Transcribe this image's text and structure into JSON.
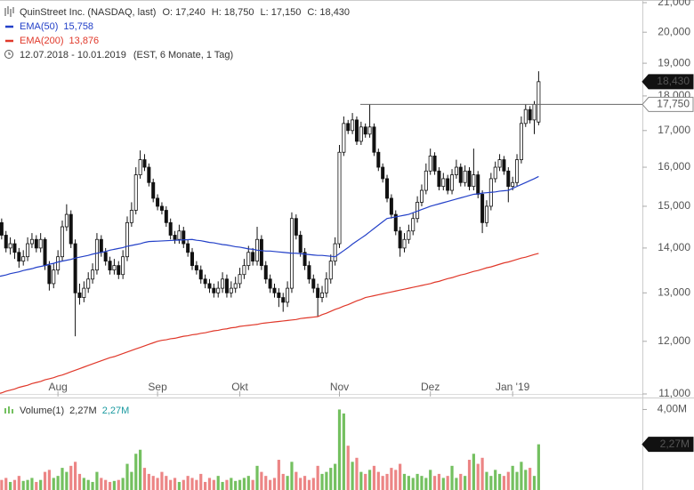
{
  "chart_data": [
    {
      "type": "candlestick",
      "title": "QuinStreet Inc. (NASDAQ, last)",
      "quote": [
        "O: 17,240",
        "H: 18,750",
        "L: 17,150",
        "C: 18,430"
      ],
      "subtitle": "12.07.2018 - 10.01.2019",
      "note": "(EST, 6 Monate, 1 Tag)",
      "categories": [
        null,
        null,
        null,
        null,
        null,
        null,
        null,
        null,
        null,
        null,
        null,
        null,
        null,
        null,
        "Aug",
        null,
        null,
        null,
        null,
        null,
        null,
        null,
        null,
        null,
        null,
        null,
        null,
        null,
        null,
        null,
        null,
        null,
        null,
        null,
        null,
        null,
        null,
        "Sep",
        null,
        null,
        null,
        null,
        null,
        null,
        null,
        null,
        null,
        null,
        null,
        null,
        null,
        null,
        null,
        null,
        null,
        null,
        "Okt",
        null,
        null,
        null,
        null,
        null,
        null,
        null,
        null,
        null,
        null,
        null,
        null,
        null,
        null,
        null,
        null,
        null,
        null,
        null,
        null,
        null,
        null,
        "Nov",
        null,
        null,
        null,
        null,
        null,
        null,
        null,
        null,
        null,
        null,
        null,
        null,
        null,
        null,
        null,
        null,
        null,
        null,
        null,
        null,
        "Dez",
        null,
        null,
        null,
        null,
        null,
        null,
        null,
        null,
        null,
        null,
        null,
        null,
        null,
        null,
        null,
        null,
        null,
        null,
        "Jan '19",
        null,
        null,
        null,
        null,
        null,
        null
      ],
      "open": [
        14400,
        14600,
        14300,
        14000,
        14100,
        13900,
        13700,
        13800,
        14100,
        14200,
        14000,
        14200,
        13600,
        13200,
        13500,
        13800,
        14500,
        14800,
        14100,
        13000,
        12900,
        13100,
        13300,
        13500,
        14200,
        13900,
        13700,
        13500,
        13600,
        13400,
        13800,
        14600,
        14900,
        15800,
        16200,
        16000,
        15600,
        15200,
        15000,
        14900,
        14600,
        14300,
        14200,
        14400,
        14100,
        13900,
        13600,
        13500,
        13300,
        13200,
        13100,
        13000,
        13100,
        13300,
        13000,
        13100,
        13200,
        13400,
        13600,
        13900,
        13700,
        14200,
        13600,
        13300,
        13100,
        13000,
        12900,
        12800,
        13100,
        14700,
        14300,
        13900,
        13600,
        13300,
        13100,
        12900,
        13000,
        13300,
        13700,
        14100,
        16400,
        17200,
        17000,
        17300,
        16700,
        17100,
        16900,
        17100,
        16400,
        16000,
        15700,
        15200,
        14800,
        14400,
        14000,
        14200,
        14400,
        14700,
        15100,
        15400,
        15900,
        16300,
        15900,
        15500,
        15700,
        15400,
        15800,
        16000,
        15600,
        15900,
        15500,
        15800,
        15300,
        14600,
        15000,
        15700,
        16000,
        16200,
        15900,
        15500,
        15600,
        16200,
        17200,
        17600,
        17300,
        17240
      ],
      "high": [
        14800,
        14700,
        14400,
        14250,
        14200,
        14000,
        13950,
        14250,
        14350,
        14300,
        14350,
        14250,
        13700,
        13650,
        13950,
        14650,
        15050,
        14900,
        14200,
        13200,
        13250,
        13450,
        13650,
        14350,
        14300,
        14000,
        13800,
        13750,
        13700,
        13950,
        14750,
        15100,
        16000,
        16450,
        16350,
        16100,
        15700,
        15300,
        15100,
        15000,
        14700,
        14400,
        14550,
        14500,
        14200,
        14000,
        13700,
        13600,
        13400,
        13300,
        13200,
        13250,
        13450,
        13400,
        13250,
        13350,
        13550,
        13750,
        14050,
        14000,
        14500,
        14300,
        13700,
        13400,
        13200,
        13100,
        13000,
        13250,
        14850,
        14800,
        14400,
        14000,
        13700,
        13400,
        13200,
        13150,
        13450,
        13850,
        14250,
        16600,
        17400,
        17300,
        17500,
        17400,
        17250,
        17200,
        17750,
        17200,
        16500,
        16100,
        15800,
        15300,
        14900,
        14500,
        14350,
        14550,
        14850,
        15250,
        15550,
        16100,
        16500,
        16400,
        16000,
        15850,
        15800,
        15950,
        16200,
        16100,
        16050,
        16000,
        16500,
        15900,
        15400,
        15150,
        15850,
        16150,
        16350,
        16300,
        16000,
        15750,
        16350,
        17400,
        17750,
        17700,
        17850,
        18750
      ],
      "low": [
        14300,
        14200,
        13900,
        13850,
        13750,
        13550,
        13600,
        13700,
        14000,
        13900,
        13900,
        13500,
        13050,
        13100,
        13400,
        13700,
        14400,
        14000,
        12100,
        12750,
        12800,
        13000,
        13200,
        13400,
        13800,
        13600,
        13400,
        13400,
        13300,
        13300,
        13700,
        14500,
        14800,
        15700,
        15900,
        15500,
        15100,
        14900,
        14800,
        14500,
        14200,
        14100,
        14100,
        14000,
        13800,
        13500,
        13400,
        13200,
        13100,
        13000,
        12900,
        12900,
        13000,
        12900,
        12900,
        13000,
        13100,
        13300,
        13500,
        13600,
        13600,
        13500,
        13200,
        13000,
        12900,
        12700,
        12600,
        12700,
        13000,
        14200,
        13800,
        13500,
        13200,
        13000,
        12500,
        12800,
        12900,
        13200,
        13600,
        14000,
        16300,
        16900,
        16900,
        16600,
        16600,
        16800,
        16800,
        16300,
        15900,
        15600,
        15100,
        14700,
        14300,
        13800,
        13900,
        14100,
        14300,
        14600,
        15000,
        15300,
        15800,
        15800,
        15400,
        15400,
        15300,
        15300,
        15700,
        15500,
        15500,
        15400,
        15400,
        15200,
        14350,
        14500,
        14900,
        15600,
        15900,
        15800,
        15100,
        15400,
        15500,
        16100,
        17100,
        17200,
        16900,
        17150
      ],
      "close": [
        14600,
        14300,
        14000,
        14100,
        13900,
        13700,
        13800,
        14100,
        14200,
        14000,
        14200,
        13600,
        13200,
        13500,
        13800,
        14500,
        14800,
        14100,
        13000,
        12900,
        13100,
        13300,
        13500,
        14200,
        13900,
        13700,
        13500,
        13600,
        13400,
        13800,
        14600,
        14900,
        15800,
        16200,
        16000,
        15600,
        15200,
        15000,
        14900,
        14600,
        14300,
        14200,
        14400,
        14100,
        13900,
        13600,
        13500,
        13300,
        13200,
        13100,
        13000,
        13100,
        13300,
        13000,
        13100,
        13200,
        13400,
        13600,
        13900,
        13700,
        14200,
        13600,
        13300,
        13100,
        13000,
        12900,
        12800,
        13100,
        14700,
        14300,
        13900,
        13600,
        13300,
        13100,
        12900,
        13000,
        13300,
        13700,
        14100,
        16400,
        17200,
        17000,
        17300,
        16700,
        17100,
        16900,
        17100,
        16400,
        16000,
        15700,
        15200,
        14800,
        14400,
        14000,
        14200,
        14400,
        14700,
        15100,
        15400,
        15900,
        16300,
        15900,
        15500,
        15700,
        15400,
        15800,
        16000,
        15600,
        15900,
        15500,
        15800,
        15300,
        14600,
        15000,
        15700,
        16000,
        16200,
        15900,
        15500,
        15600,
        16200,
        17200,
        17600,
        17300,
        17750,
        18430
      ],
      "up_color": "#ffffff",
      "down_color": "#111111",
      "series": [
        {
          "name": "EMA(50)",
          "color": "#2340c8",
          "last_label": "15,758",
          "values": [
            13350,
            13370,
            13390,
            13420,
            13440,
            13460,
            13490,
            13510,
            13530,
            13560,
            13580,
            13600,
            13630,
            13650,
            13680,
            13700,
            13720,
            13740,
            13770,
            13790,
            13810,
            13830,
            13860,
            13880,
            13900,
            13920,
            13950,
            13970,
            13990,
            14010,
            14040,
            14060,
            14080,
            14100,
            14130,
            14150,
            14155,
            14160,
            14165,
            14170,
            14175,
            14180,
            14185,
            14190,
            14195,
            14200,
            14180,
            14170,
            14150,
            14130,
            14120,
            14100,
            14080,
            14070,
            14050,
            14030,
            14020,
            14000,
            13980,
            13970,
            13950,
            13940,
            13930,
            13930,
            13920,
            13910,
            13900,
            13890,
            13880,
            13880,
            13870,
            13860,
            13850,
            13840,
            13830,
            13830,
            13820,
            13810,
            13800,
            13870,
            13940,
            14010,
            14090,
            14160,
            14230,
            14300,
            14380,
            14460,
            14540,
            14620,
            14700,
            14720,
            14740,
            14760,
            14780,
            14800,
            14840,
            14880,
            14920,
            14960,
            15000,
            15030,
            15060,
            15090,
            15120,
            15150,
            15180,
            15210,
            15240,
            15270,
            15300,
            15310,
            15330,
            15340,
            15350,
            15360,
            15380,
            15390,
            15400,
            15450,
            15500,
            15550,
            15600,
            15650,
            15700,
            15758
          ]
        },
        {
          "name": "EMA(200)",
          "color": "#e0382a",
          "last_label": "13,876",
          "values": [
            11000,
            11020,
            11050,
            11070,
            11090,
            11120,
            11140,
            11160,
            11190,
            11210,
            11230,
            11260,
            11280,
            11300,
            11330,
            11350,
            11380,
            11410,
            11440,
            11470,
            11500,
            11530,
            11560,
            11590,
            11620,
            11650,
            11680,
            11700,
            11730,
            11760,
            11790,
            11820,
            11850,
            11880,
            11910,
            11940,
            11970,
            12000,
            12020,
            12030,
            12050,
            12060,
            12080,
            12100,
            12110,
            12130,
            12140,
            12160,
            12170,
            12190,
            12210,
            12220,
            12240,
            12250,
            12270,
            12280,
            12300,
            12310,
            12320,
            12330,
            12340,
            12360,
            12370,
            12380,
            12390,
            12400,
            12410,
            12420,
            12430,
            12440,
            12460,
            12470,
            12480,
            12490,
            12500,
            12540,
            12570,
            12610,
            12650,
            12680,
            12720,
            12750,
            12790,
            12830,
            12860,
            12900,
            12920,
            12940,
            12960,
            12980,
            13000,
            13020,
            13040,
            13060,
            13080,
            13100,
            13120,
            13140,
            13160,
            13180,
            13200,
            13230,
            13250,
            13280,
            13310,
            13330,
            13360,
            13390,
            13410,
            13440,
            13470,
            13490,
            13520,
            13550,
            13570,
            13600,
            13630,
            13660,
            13680,
            13710,
            13740,
            13770,
            13790,
            13820,
            13850,
            13876
          ]
        }
      ],
      "log_scale": true,
      "ylim": [
        11000,
        21000
      ],
      "yticks": [
        {
          "value": 11000,
          "label": "11,000"
        },
        {
          "value": 12000,
          "label": "12,000"
        },
        {
          "value": 13000,
          "label": "13,000"
        },
        {
          "value": 14000,
          "label": "14,000"
        },
        {
          "value": 15000,
          "label": "15,000"
        },
        {
          "value": 16000,
          "label": "16,000"
        },
        {
          "value": 17000,
          "label": "17,000"
        },
        {
          "value": 18000,
          "label": "18,000"
        },
        {
          "value": 19000,
          "label": "19,000"
        },
        {
          "value": 20000,
          "label": "20,000"
        },
        {
          "value": 21000,
          "label": "21,000"
        }
      ],
      "markers": [
        {
          "value": 18430,
          "label": "18,430",
          "color": "#111111"
        },
        {
          "value": 17750,
          "label": "17,750",
          "color": "#ffffff",
          "line": true
        }
      ]
    },
    {
      "type": "bar",
      "series": [
        {
          "name": "Volume(1)",
          "values": [
            700000,
            500000,
            600000,
            400000,
            500000,
            700000,
            450000,
            500000,
            600000,
            400000,
            500000,
            900000,
            1000000,
            600000,
            700000,
            1100000,
            900000,
            1200000,
            1400000,
            800000,
            600000,
            500000,
            400000,
            900000,
            600000,
            500000,
            400000,
            450000,
            500000,
            600000,
            1300000,
            900000,
            1800000,
            2000000,
            1100000,
            800000,
            700000,
            600000,
            900000,
            700000,
            500000,
            600000,
            400000,
            500000,
            700000,
            600000,
            500000,
            800000,
            400000,
            600000,
            500000,
            700000,
            400000,
            500000,
            600000,
            450000,
            500000,
            600000,
            700000,
            500000,
            1200000,
            900000,
            700000,
            500000,
            600000,
            1500000,
            800000,
            700000,
            1400000,
            900000,
            600000,
            700000,
            500000,
            600000,
            1200000,
            800000,
            900000,
            1100000,
            1300000,
            4000000,
            3800000,
            2200000,
            1400000,
            1600000,
            900000,
            800000,
            1000000,
            1200000,
            900000,
            700000,
            800000,
            1100000,
            1000000,
            1300000,
            800000,
            700000,
            600000,
            800000,
            700000,
            600000,
            1000000,
            700000,
            800000,
            600000,
            700000,
            1200000,
            600000,
            800000,
            700000,
            1500000,
            1800000,
            1300000,
            1600000,
            900000,
            700000,
            1000000,
            800000,
            700000,
            900000,
            1200000,
            900000,
            1400000,
            1000000,
            1100000,
            700000,
            2270000
          ]
        }
      ],
      "legend_values": [
        "2,27M",
        "2,27M"
      ],
      "up_color": "#74c060",
      "down_color": "#ec8585",
      "ylim": [
        0,
        4550000
      ],
      "yticks": [
        {
          "value": 4000000,
          "label": "4,00M"
        }
      ],
      "markers": [
        {
          "value": 2270000,
          "label": "2,27M",
          "color": "#111111"
        }
      ]
    }
  ]
}
